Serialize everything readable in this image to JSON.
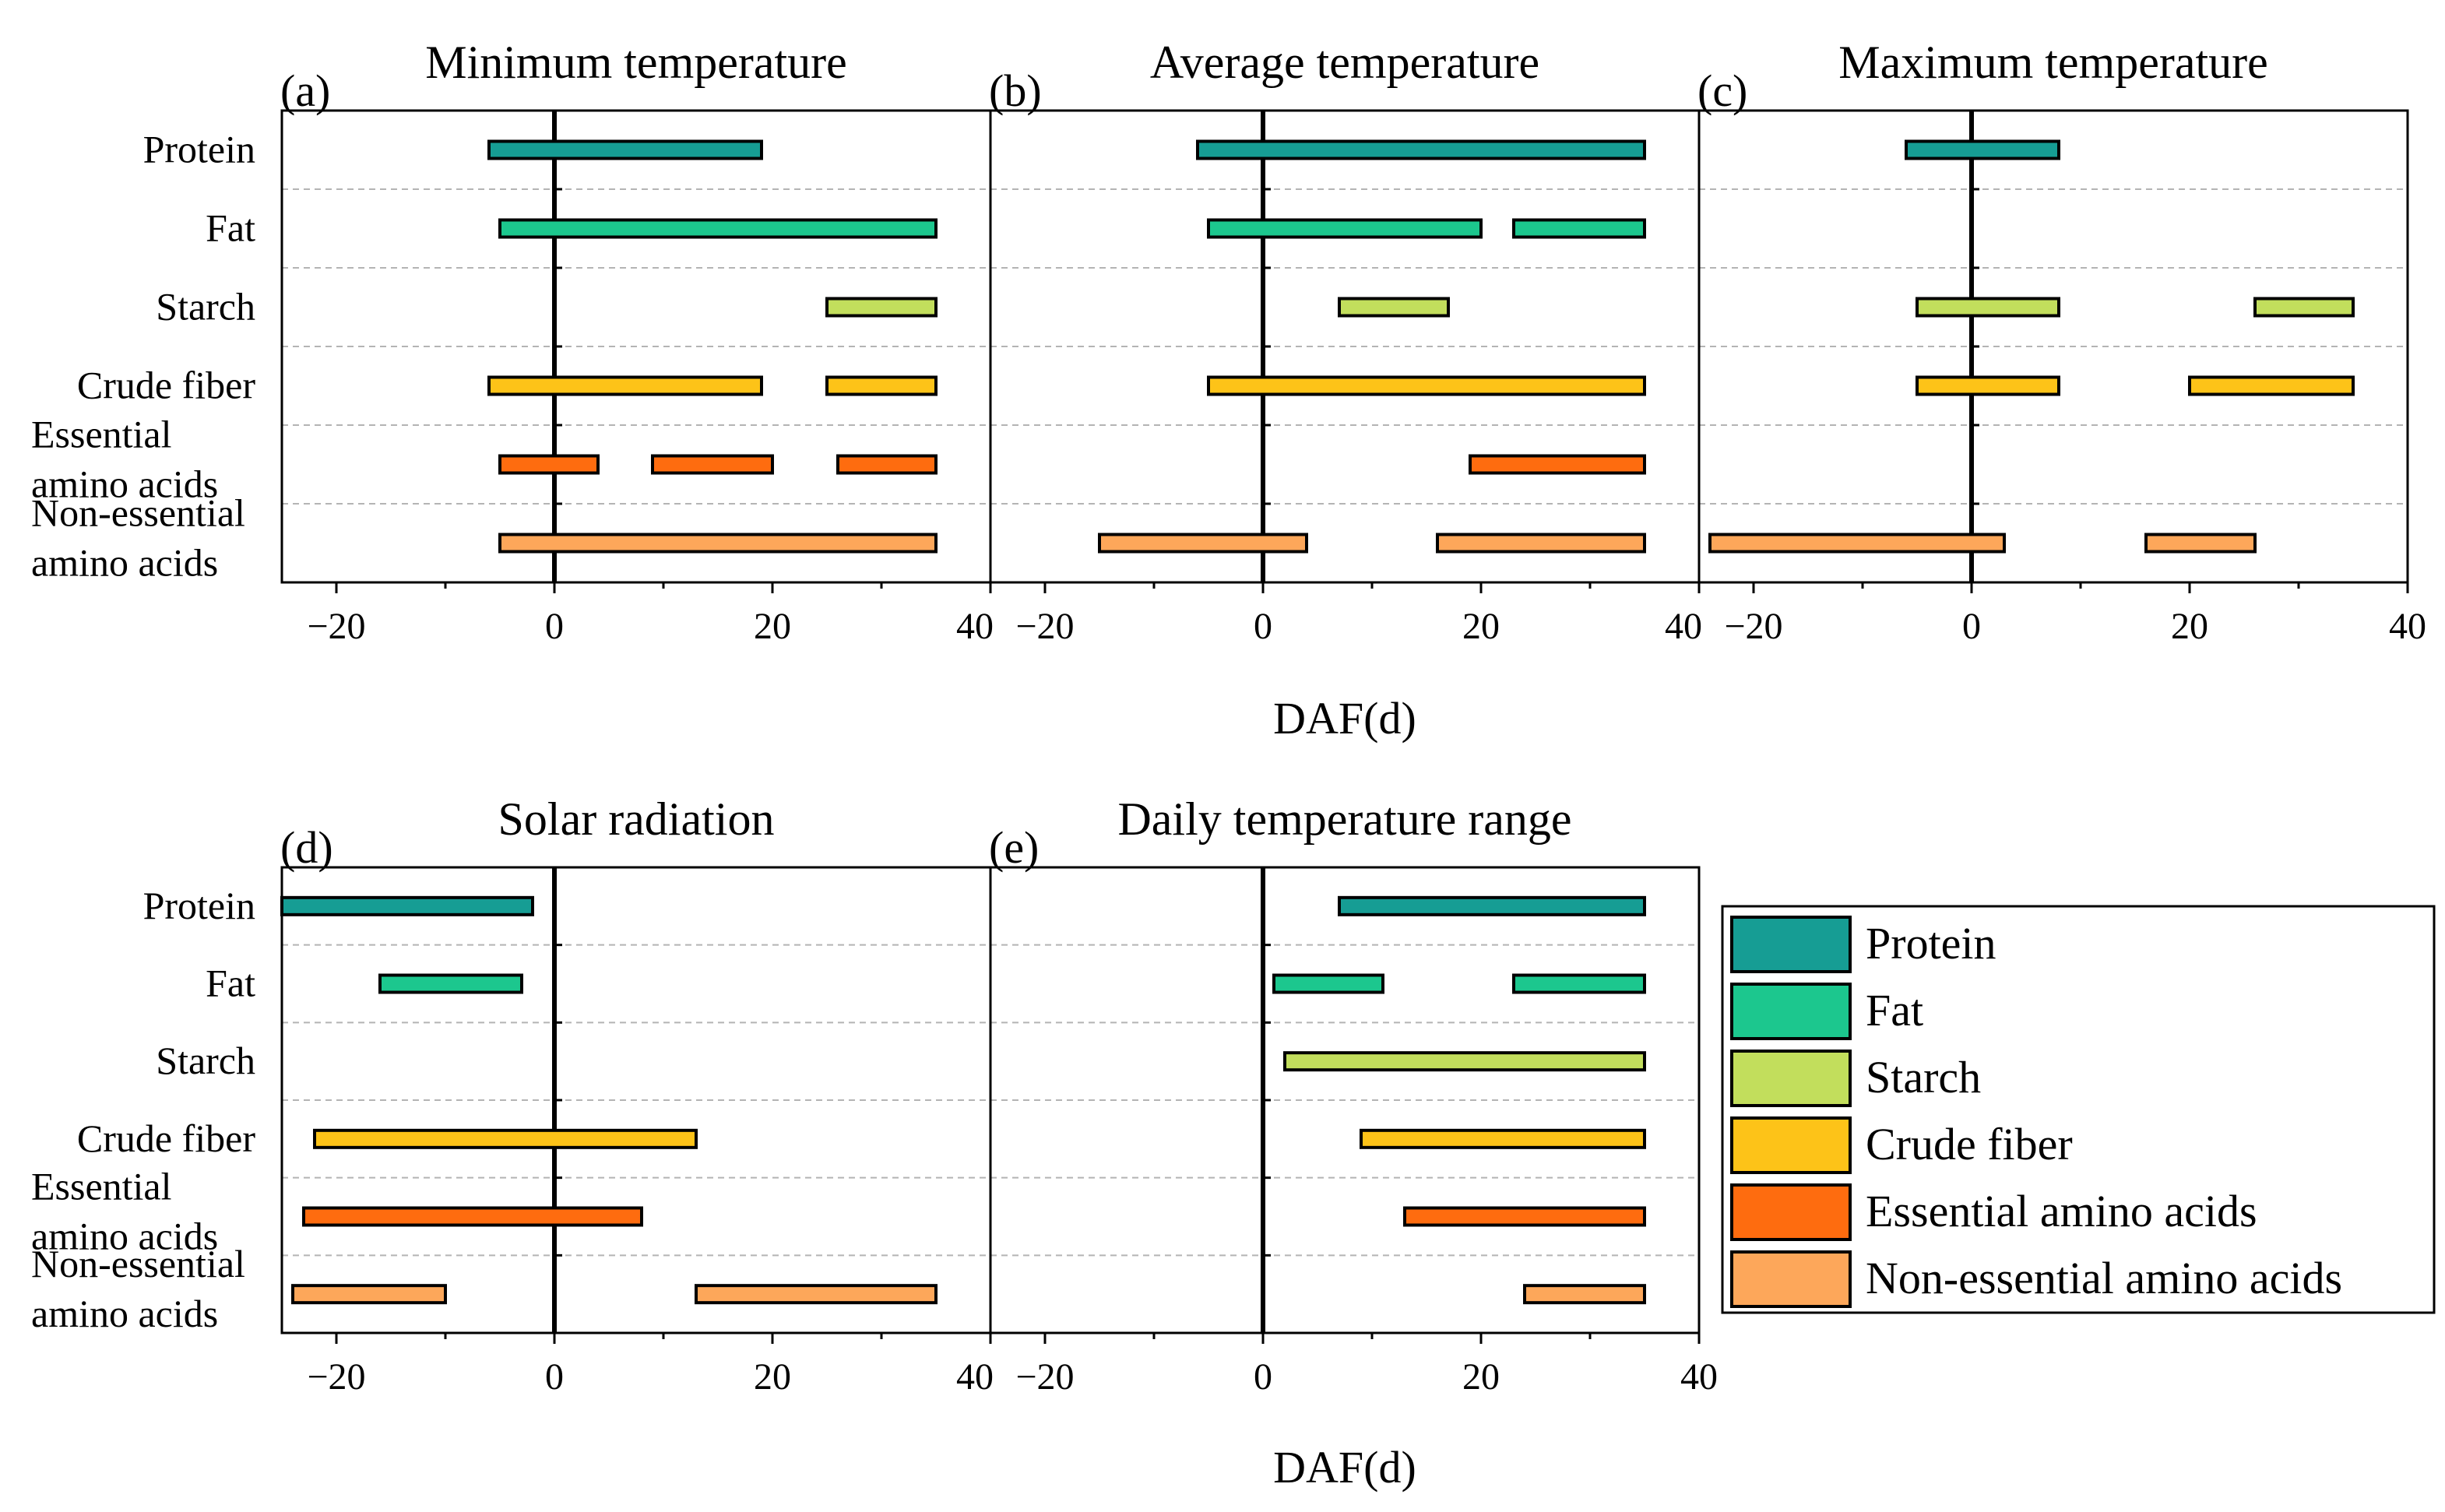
{
  "chart_data": {
    "type": "bar",
    "orientation": "horizontal-range",
    "xlabel": "DAF(d)",
    "xlim": [
      -25,
      40
    ],
    "xticks": [
      -20,
      0,
      20,
      40
    ],
    "categories": [
      "Protein",
      "Fat",
      "Starch",
      "Crude fiber",
      "Essential amino acids",
      "Non-essential amino acids"
    ],
    "category_lines": [
      [
        "Protein"
      ],
      [
        "Fat"
      ],
      [
        "Starch"
      ],
      [
        "Crude fiber"
      ],
      [
        "Essential",
        "amino acids"
      ],
      [
        "Non-essential",
        "amino acids"
      ]
    ],
    "colors": {
      "Protein": "#169d94",
      "Fat": "#1cc78e",
      "Starch": "#c2de5c",
      "Crude fiber": "#fdc318",
      "Essential amino acids": "#fe6c0f",
      "Non-essential amino acids": "#fda75a"
    },
    "legend": {
      "position": "right",
      "entries": [
        "Protein",
        "Fat",
        "Starch",
        "Crude fiber",
        "Essential amino acids",
        "Non-essential amino acids"
      ]
    },
    "panels": [
      {
        "label": "(a)",
        "title": "Minimum temperature",
        "series": [
          {
            "name": "Protein",
            "ranges": [
              [
                -6,
                19
              ]
            ]
          },
          {
            "name": "Fat",
            "ranges": [
              [
                -5,
                35
              ]
            ]
          },
          {
            "name": "Starch",
            "ranges": [
              [
                25,
                35
              ]
            ]
          },
          {
            "name": "Crude fiber",
            "ranges": [
              [
                -6,
                19
              ],
              [
                25,
                35
              ]
            ]
          },
          {
            "name": "Essential amino acids",
            "ranges": [
              [
                -5,
                4
              ],
              [
                9,
                20
              ],
              [
                26,
                35
              ]
            ]
          },
          {
            "name": "Non-essential amino acids",
            "ranges": [
              [
                -5,
                35
              ]
            ]
          }
        ]
      },
      {
        "label": "(b)",
        "title": "Average temperature",
        "series": [
          {
            "name": "Protein",
            "ranges": [
              [
                -6,
                35
              ]
            ]
          },
          {
            "name": "Fat",
            "ranges": [
              [
                -5,
                20
              ],
              [
                23,
                35
              ]
            ]
          },
          {
            "name": "Starch",
            "ranges": [
              [
                7,
                17
              ]
            ]
          },
          {
            "name": "Crude fiber",
            "ranges": [
              [
                -5,
                35
              ]
            ]
          },
          {
            "name": "Essential amino acids",
            "ranges": [
              [
                19,
                35
              ]
            ]
          },
          {
            "name": "Non-essential amino acids",
            "ranges": [
              [
                -15,
                4
              ],
              [
                16,
                35
              ]
            ]
          }
        ]
      },
      {
        "label": "(c)",
        "title": "Maximum temperature",
        "series": [
          {
            "name": "Protein",
            "ranges": [
              [
                -6,
                8
              ]
            ]
          },
          {
            "name": "Fat",
            "ranges": []
          },
          {
            "name": "Starch",
            "ranges": [
              [
                -5,
                8
              ],
              [
                26,
                35
              ]
            ]
          },
          {
            "name": "Crude fiber",
            "ranges": [
              [
                -5,
                8
              ],
              [
                20,
                35
              ]
            ]
          },
          {
            "name": "Essential amino acids",
            "ranges": []
          },
          {
            "name": "Non-essential amino acids",
            "ranges": [
              [
                -24,
                3
              ],
              [
                16,
                26
              ]
            ]
          }
        ]
      },
      {
        "label": "(d)",
        "title": "Solar radiation",
        "series": [
          {
            "name": "Protein",
            "ranges": [
              [
                -25,
                -2
              ]
            ]
          },
          {
            "name": "Fat",
            "ranges": [
              [
                -16,
                -3
              ]
            ]
          },
          {
            "name": "Starch",
            "ranges": []
          },
          {
            "name": "Crude fiber",
            "ranges": [
              [
                -22,
                13
              ]
            ]
          },
          {
            "name": "Essential amino acids",
            "ranges": [
              [
                -23,
                8
              ]
            ]
          },
          {
            "name": "Non-essential amino acids",
            "ranges": [
              [
                -24,
                -10
              ],
              [
                13,
                35
              ]
            ]
          }
        ]
      },
      {
        "label": "(e)",
        "title": "Daily temperature range",
        "series": [
          {
            "name": "Protein",
            "ranges": [
              [
                7,
                35
              ]
            ]
          },
          {
            "name": "Fat",
            "ranges": [
              [
                1,
                11
              ],
              [
                23,
                35
              ]
            ]
          },
          {
            "name": "Starch",
            "ranges": [
              [
                2,
                35
              ]
            ]
          },
          {
            "name": "Crude fiber",
            "ranges": [
              [
                9,
                35
              ]
            ]
          },
          {
            "name": "Essential amino acids",
            "ranges": [
              [
                13,
                35
              ]
            ]
          },
          {
            "name": "Non-essential amino acids",
            "ranges": [
              [
                24,
                35
              ]
            ]
          }
        ]
      }
    ]
  }
}
